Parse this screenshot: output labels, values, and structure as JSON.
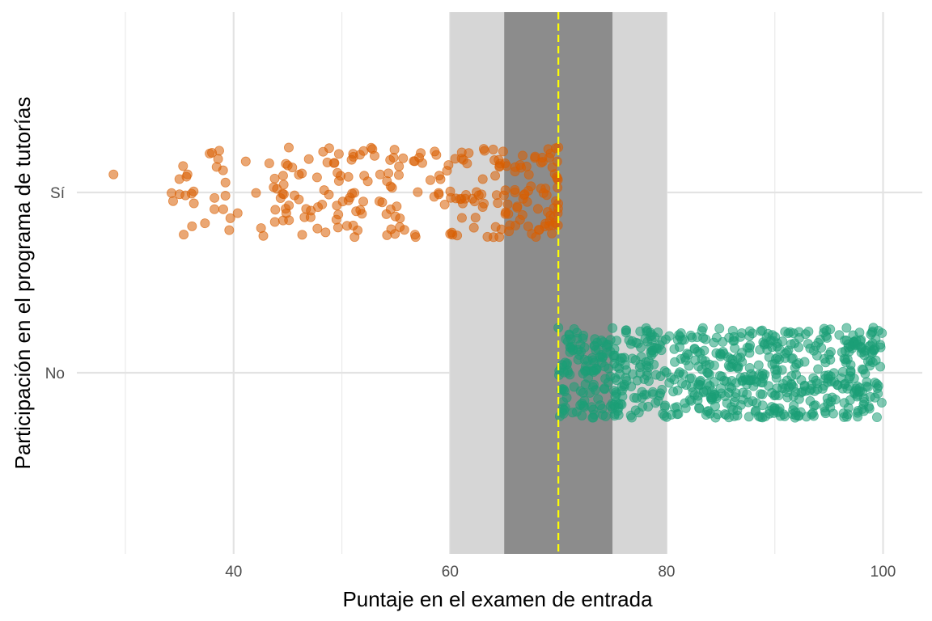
{
  "chart_data": {
    "type": "scatter",
    "title": "",
    "xlabel": "Puntaje en el examen de entrada",
    "ylabel": "Participación en el programa de tutorías",
    "xlim": [
      25,
      104
    ],
    "x_ticks": [
      40,
      60,
      80,
      100
    ],
    "x_minor_ticks": [
      30,
      50,
      70,
      90
    ],
    "categories": [
      "No",
      "Sí"
    ],
    "cutoff": 70,
    "bands": [
      {
        "name": "wide-bandwidth",
        "from": 60,
        "to": 80,
        "color": "#d6d6d6"
      },
      {
        "name": "narrow-bandwidth",
        "from": 65,
        "to": 75,
        "color": "#8c8c8c"
      }
    ],
    "cutoff_color": "#ffff00",
    "grid": true,
    "series": [
      {
        "name": "Sí",
        "category": "Sí",
        "color": "#d95f02",
        "n": 260,
        "x_min": 28.9,
        "x_max": 70,
        "jitter": 0.25,
        "sample_points": [
          [
            28.9,
            0.1
          ],
          [
            35,
            -0.01
          ],
          [
            38,
            0.22
          ],
          [
            44,
            0.02
          ],
          [
            52,
            0.23
          ],
          [
            60,
            -0.23
          ],
          [
            66,
            0.0
          ],
          [
            70,
            0.25
          ]
        ]
      },
      {
        "name": "No",
        "category": "No",
        "color": "#1b9e77",
        "n": 700,
        "x_min": 70,
        "x_max": 99.9,
        "jitter": 0.25,
        "sample_points": [
          [
            70,
            0.25
          ],
          [
            75,
            -0.2
          ],
          [
            82,
            0.1
          ],
          [
            90,
            0.05
          ],
          [
            93.6,
            -0.24
          ],
          [
            99.1,
            0.25
          ],
          [
            99.9,
            0.22
          ]
        ]
      }
    ]
  }
}
